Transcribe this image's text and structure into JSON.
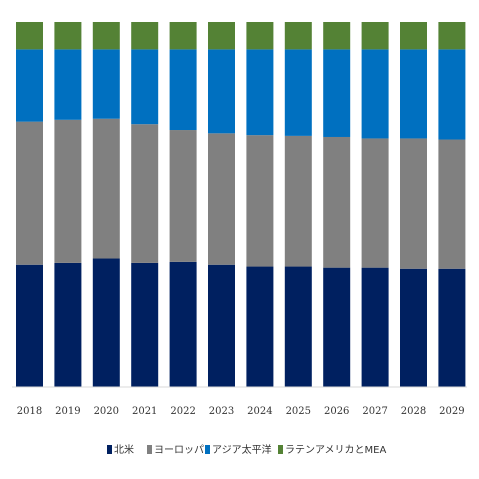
{
  "chart_data": {
    "type": "bar",
    "stacked": true,
    "percent_stacked": true,
    "categories": [
      "2018",
      "2019",
      "2020",
      "2021",
      "2022",
      "2023",
      "2024",
      "2025",
      "2026",
      "2027",
      "2028",
      "2029"
    ],
    "series": [
      {
        "name": "北米",
        "color": "#002060",
        "values": [
          33.5,
          34.0,
          35.2,
          34.0,
          34.3,
          33.5,
          33.0,
          33.0,
          32.7,
          32.7,
          32.4,
          32.4
        ]
      },
      {
        "name": "ヨーロッパ",
        "color": "#808080",
        "values": [
          39.2,
          39.2,
          38.3,
          38.0,
          36.1,
          36.0,
          36.0,
          35.8,
          35.8,
          35.4,
          35.7,
          35.4
        ]
      },
      {
        "name": "アジア太平洋",
        "color": "#0070C0",
        "values": [
          19.8,
          19.3,
          19.0,
          20.5,
          22.1,
          23.0,
          23.5,
          23.7,
          24.0,
          24.4,
          24.4,
          24.7
        ]
      },
      {
        "name": "ラテンアメリカとMEA",
        "color": "#548235",
        "values": [
          7.5,
          7.5,
          7.5,
          7.5,
          7.5,
          7.5,
          7.5,
          7.5,
          7.5,
          7.5,
          7.5,
          7.5
        ]
      }
    ],
    "ylim": [
      0,
      100
    ],
    "grid": false,
    "legend_position": "bottom"
  }
}
